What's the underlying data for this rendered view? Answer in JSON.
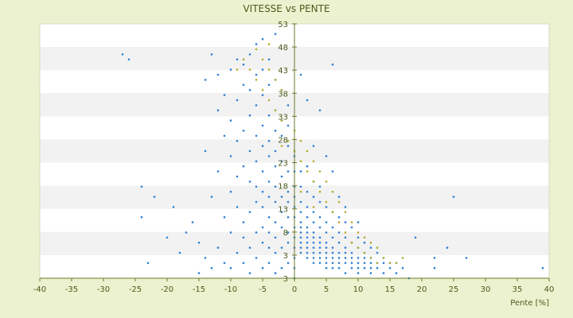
{
  "chart_data": {
    "type": "scatter",
    "title": "VITESSE vs PENTE",
    "xlabel": "Pente [%]",
    "ylabel": "",
    "xlim": [
      -40,
      40
    ],
    "ylim": [
      3,
      53
    ],
    "x_ticks": [
      "-40",
      "-35",
      "-30",
      "-25",
      "-20",
      "-15",
      "-10",
      "-5",
      "0",
      "5",
      "10",
      "15",
      "20",
      "25",
      "30",
      "35",
      "40"
    ],
    "y_ticks": [
      "3",
      "3",
      "8",
      "13",
      "18",
      "23",
      "28",
      "33",
      "38",
      "43",
      "48",
      "53"
    ],
    "grid": true,
    "legend": "none",
    "colors": {
      "background": "#ecf2cf",
      "plot_band_light": "#ffffff",
      "plot_band_dark": "#f2f2f2",
      "axis": "#6b7a2a",
      "series_blue": "#2f7fd6",
      "series_yellow": "#b4ad2e"
    },
    "series": [
      {
        "color": "#2f7fd6",
        "points": [
          [
            -27,
            47
          ],
          [
            -26,
            46
          ],
          [
            -24,
            21
          ],
          [
            -24,
            15
          ],
          [
            -23,
            6
          ],
          [
            -22,
            19
          ],
          [
            -20,
            11
          ],
          [
            -19,
            17
          ],
          [
            -18,
            8
          ],
          [
            -17,
            12
          ],
          [
            -16,
            14
          ],
          [
            -15,
            10
          ],
          [
            -15,
            4
          ],
          [
            -14,
            7
          ],
          [
            -14,
            28
          ],
          [
            -14,
            42
          ],
          [
            -13,
            5
          ],
          [
            -13,
            19
          ],
          [
            -13,
            47
          ],
          [
            -12,
            9
          ],
          [
            -12,
            24
          ],
          [
            -12,
            36
          ],
          [
            -12,
            43
          ],
          [
            -11,
            6
          ],
          [
            -11,
            15
          ],
          [
            -11,
            31
          ],
          [
            -11,
            39
          ],
          [
            -10,
            5
          ],
          [
            -10,
            12
          ],
          [
            -10,
            20
          ],
          [
            -10,
            27
          ],
          [
            -10,
            34
          ],
          [
            -10,
            44
          ],
          [
            -9,
            8
          ],
          [
            -9,
            17
          ],
          [
            -9,
            23
          ],
          [
            -9,
            30
          ],
          [
            -9,
            38
          ],
          [
            -9,
            46
          ],
          [
            -8,
            6
          ],
          [
            -8,
            11
          ],
          [
            -8,
            14
          ],
          [
            -8,
            25
          ],
          [
            -8,
            32
          ],
          [
            -8,
            41
          ],
          [
            -8,
            45
          ],
          [
            -7,
            4
          ],
          [
            -7,
            9
          ],
          [
            -7,
            16
          ],
          [
            -7,
            22
          ],
          [
            -7,
            28
          ],
          [
            -7,
            35
          ],
          [
            -7,
            40
          ],
          [
            -7,
            47
          ],
          [
            -6,
            7
          ],
          [
            -6,
            12
          ],
          [
            -6,
            18
          ],
          [
            -6,
            21
          ],
          [
            -6,
            26
          ],
          [
            -6,
            31
          ],
          [
            -6,
            37
          ],
          [
            -6,
            43
          ],
          [
            -6,
            49
          ],
          [
            -5,
            5
          ],
          [
            -5,
            10
          ],
          [
            -5,
            13
          ],
          [
            -5,
            17
          ],
          [
            -5,
            20
          ],
          [
            -5,
            24
          ],
          [
            -5,
            29
          ],
          [
            -5,
            33
          ],
          [
            -5,
            39
          ],
          [
            -5,
            44
          ],
          [
            -5,
            50
          ],
          [
            -4,
            6
          ],
          [
            -4,
            9
          ],
          [
            -4,
            12
          ],
          [
            -4,
            15
          ],
          [
            -4,
            19
          ],
          [
            -4,
            22
          ],
          [
            -4,
            27
          ],
          [
            -4,
            30
          ],
          [
            -4,
            35
          ],
          [
            -4,
            41
          ],
          [
            -4,
            46
          ],
          [
            -3,
            4
          ],
          [
            -3,
            8
          ],
          [
            -3,
            11
          ],
          [
            -3,
            14
          ],
          [
            -3,
            18
          ],
          [
            -3,
            21
          ],
          [
            -3,
            25
          ],
          [
            -3,
            28
          ],
          [
            -3,
            32
          ],
          [
            -3,
            36
          ],
          [
            -3,
            42
          ],
          [
            -3,
            51
          ],
          [
            -2,
            5
          ],
          [
            -2,
            9
          ],
          [
            -2,
            13
          ],
          [
            -2,
            16
          ],
          [
            -2,
            19
          ],
          [
            -2,
            23
          ],
          [
            -2,
            26
          ],
          [
            -2,
            31
          ],
          [
            -2,
            34
          ],
          [
            -2,
            40
          ],
          [
            -1,
            6
          ],
          [
            -1,
            10
          ],
          [
            -1,
            12
          ],
          [
            -1,
            15
          ],
          [
            -1,
            18
          ],
          [
            -1,
            20
          ],
          [
            -1,
            24
          ],
          [
            -1,
            29
          ],
          [
            -1,
            33
          ],
          [
            -1,
            37
          ],
          [
            0,
            3
          ],
          [
            0,
            5
          ],
          [
            0,
            7
          ],
          [
            0,
            9
          ],
          [
            0,
            11
          ],
          [
            0,
            13
          ],
          [
            0,
            15
          ],
          [
            0,
            17
          ],
          [
            0,
            19
          ],
          [
            0,
            21
          ],
          [
            0,
            24
          ],
          [
            0,
            27
          ],
          [
            1,
            8
          ],
          [
            1,
            9
          ],
          [
            1,
            10
          ],
          [
            1,
            11
          ],
          [
            1,
            12
          ],
          [
            1,
            13
          ],
          [
            1,
            14
          ],
          [
            1,
            16
          ],
          [
            1,
            18
          ],
          [
            1,
            21
          ],
          [
            1,
            24
          ],
          [
            1,
            43
          ],
          [
            2,
            7
          ],
          [
            2,
            8
          ],
          [
            2,
            9
          ],
          [
            2,
            10
          ],
          [
            2,
            11
          ],
          [
            2,
            12
          ],
          [
            2,
            13
          ],
          [
            2,
            15
          ],
          [
            2,
            17
          ],
          [
            2,
            20
          ],
          [
            2,
            25
          ],
          [
            2,
            38
          ],
          [
            3,
            6
          ],
          [
            3,
            7
          ],
          [
            3,
            8
          ],
          [
            3,
            9
          ],
          [
            3,
            10
          ],
          [
            3,
            11
          ],
          [
            3,
            12
          ],
          [
            3,
            14
          ],
          [
            3,
            16
          ],
          [
            3,
            19
          ],
          [
            3,
            22
          ],
          [
            3,
            29
          ],
          [
            4,
            6
          ],
          [
            4,
            7
          ],
          [
            4,
            8
          ],
          [
            4,
            9
          ],
          [
            4,
            10
          ],
          [
            4,
            11
          ],
          [
            4,
            13
          ],
          [
            4,
            15
          ],
          [
            4,
            18
          ],
          [
            4,
            21
          ],
          [
            4,
            36
          ],
          [
            5,
            5
          ],
          [
            5,
            6
          ],
          [
            5,
            7
          ],
          [
            5,
            8
          ],
          [
            5,
            9
          ],
          [
            5,
            10
          ],
          [
            5,
            12
          ],
          [
            5,
            14
          ],
          [
            5,
            17
          ],
          [
            5,
            27
          ],
          [
            6,
            5
          ],
          [
            6,
            6
          ],
          [
            6,
            7
          ],
          [
            6,
            8
          ],
          [
            6,
            9
          ],
          [
            6,
            11
          ],
          [
            6,
            13
          ],
          [
            6,
            16
          ],
          [
            6,
            24
          ],
          [
            6,
            45
          ],
          [
            7,
            5
          ],
          [
            7,
            6
          ],
          [
            7,
            7
          ],
          [
            7,
            8
          ],
          [
            7,
            10
          ],
          [
            7,
            12
          ],
          [
            7,
            15
          ],
          [
            7,
            19
          ],
          [
            8,
            4
          ],
          [
            8,
            6
          ],
          [
            8,
            7
          ],
          [
            8,
            8
          ],
          [
            8,
            9
          ],
          [
            8,
            11
          ],
          [
            8,
            14
          ],
          [
            8,
            17
          ],
          [
            9,
            5
          ],
          [
            9,
            6
          ],
          [
            9,
            7
          ],
          [
            9,
            8
          ],
          [
            9,
            10
          ],
          [
            9,
            13
          ],
          [
            10,
            4
          ],
          [
            10,
            5
          ],
          [
            10,
            6
          ],
          [
            10,
            7
          ],
          [
            10,
            9
          ],
          [
            10,
            11
          ],
          [
            10,
            14
          ],
          [
            11,
            5
          ],
          [
            11,
            6
          ],
          [
            11,
            7
          ],
          [
            11,
            8
          ],
          [
            11,
            10
          ],
          [
            12,
            4
          ],
          [
            12,
            5
          ],
          [
            12,
            6
          ],
          [
            12,
            7
          ],
          [
            12,
            9
          ],
          [
            13,
            5
          ],
          [
            13,
            6
          ],
          [
            13,
            8
          ],
          [
            14,
            4
          ],
          [
            14,
            6
          ],
          [
            14,
            7
          ],
          [
            15,
            5
          ],
          [
            15,
            6
          ],
          [
            16,
            4
          ],
          [
            16,
            6
          ],
          [
            17,
            5
          ],
          [
            18,
            3
          ],
          [
            19,
            11
          ],
          [
            22,
            5
          ],
          [
            22,
            7
          ],
          [
            24,
            9
          ],
          [
            25,
            19
          ],
          [
            27,
            7
          ],
          [
            39,
            5
          ]
        ]
      },
      {
        "color": "#b4ad2e",
        "points": [
          [
            -8,
            46
          ],
          [
            -7,
            44
          ],
          [
            -6,
            48
          ],
          [
            -6,
            42
          ],
          [
            -5,
            46
          ],
          [
            -5,
            40
          ],
          [
            -4,
            44
          ],
          [
            -4,
            38
          ],
          [
            -3,
            42
          ],
          [
            -3,
            36
          ],
          [
            -2,
            40
          ],
          [
            -2,
            34
          ],
          [
            -1,
            30
          ],
          [
            0,
            28
          ],
          [
            0,
            32
          ],
          [
            1,
            26
          ],
          [
            1,
            30
          ],
          [
            2,
            24
          ],
          [
            2,
            28
          ],
          [
            3,
            22
          ],
          [
            3,
            26
          ],
          [
            4,
            20
          ],
          [
            4,
            24
          ],
          [
            5,
            18
          ],
          [
            5,
            22
          ],
          [
            6,
            16
          ],
          [
            6,
            20
          ],
          [
            7,
            14
          ],
          [
            7,
            18
          ],
          [
            8,
            12
          ],
          [
            8,
            16
          ],
          [
            9,
            10
          ],
          [
            9,
            14
          ],
          [
            10,
            9
          ],
          [
            10,
            12
          ],
          [
            11,
            8
          ],
          [
            11,
            11
          ],
          [
            12,
            7
          ],
          [
            12,
            10
          ],
          [
            13,
            6
          ],
          [
            13,
            9
          ],
          [
            14,
            7
          ],
          [
            15,
            6
          ],
          [
            16,
            6
          ],
          [
            17,
            7
          ],
          [
            -9,
            44
          ],
          [
            -4,
            49
          ],
          [
            -2,
            29
          ],
          [
            1,
            20
          ],
          [
            3,
            17
          ]
        ]
      }
    ]
  }
}
